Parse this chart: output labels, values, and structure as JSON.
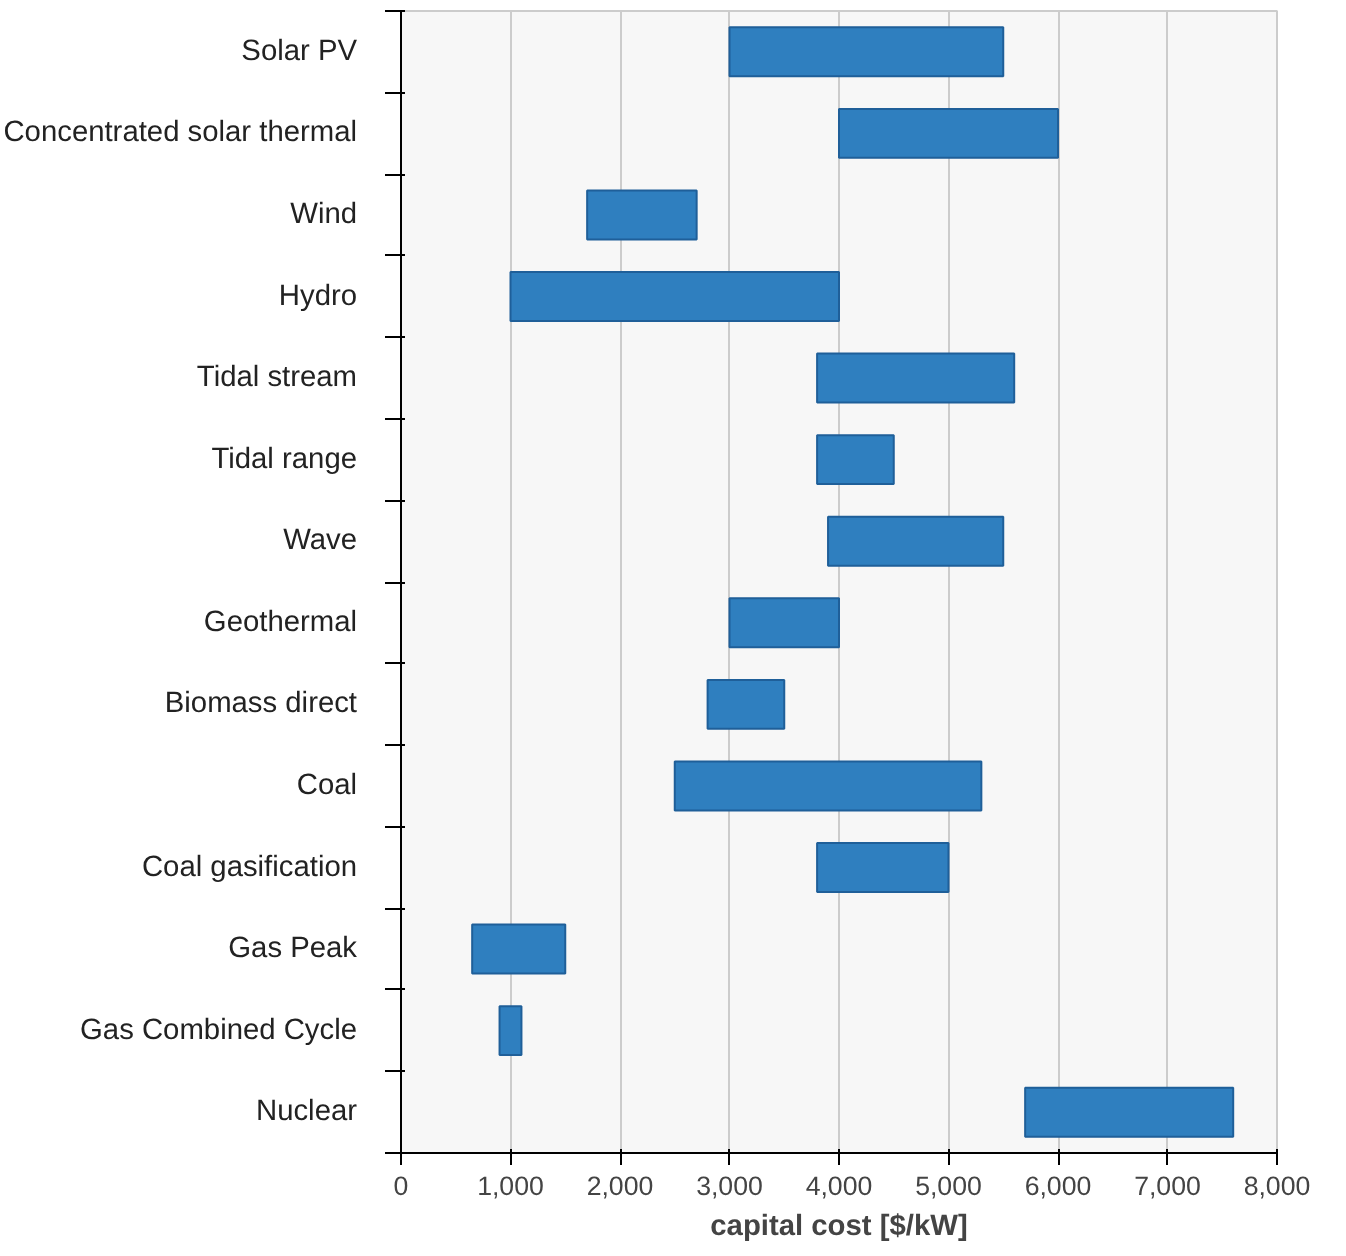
{
  "chart_data": {
    "type": "bar",
    "orientation": "horizontal",
    "xlabel": "capital cost [$/kW]",
    "categories": [
      "Solar PV",
      "Concentrated solar thermal",
      "Wind",
      "Hydro",
      "Tidal stream",
      "Tidal range",
      "Wave",
      "Geothermal",
      "Biomass direct",
      "Coal",
      "Coal gasification",
      "Gas Peak",
      "Gas Combined Cycle",
      "Nuclear"
    ],
    "base": [
      3000,
      4000,
      1700,
      1000,
      3800,
      3800,
      3900,
      3000,
      2800,
      2500,
      3800,
      650,
      900,
      5700
    ],
    "values": [
      2500,
      2000,
      1000,
      3000,
      1800,
      700,
      1600,
      1000,
      700,
      2800,
      1200,
      850,
      200,
      1900
    ],
    "color": "#2f7fbf",
    "xlim": [
      0,
      8000
    ],
    "xticks": [
      0,
      {
        "value": 1000,
        "label": "1,000"
      },
      {
        "value": 2000,
        "label": "2,000"
      },
      {
        "value": 3000,
        "label": "3,000"
      },
      {
        "value": 4000,
        "label": "4,000"
      },
      {
        "value": 5000,
        "label": "5,000"
      },
      {
        "value": 6000,
        "label": "6,000"
      },
      {
        "value": 7000,
        "label": "7,000"
      },
      {
        "value": 8000,
        "label": "8,000"
      }
    ],
    "grid": "x"
  }
}
